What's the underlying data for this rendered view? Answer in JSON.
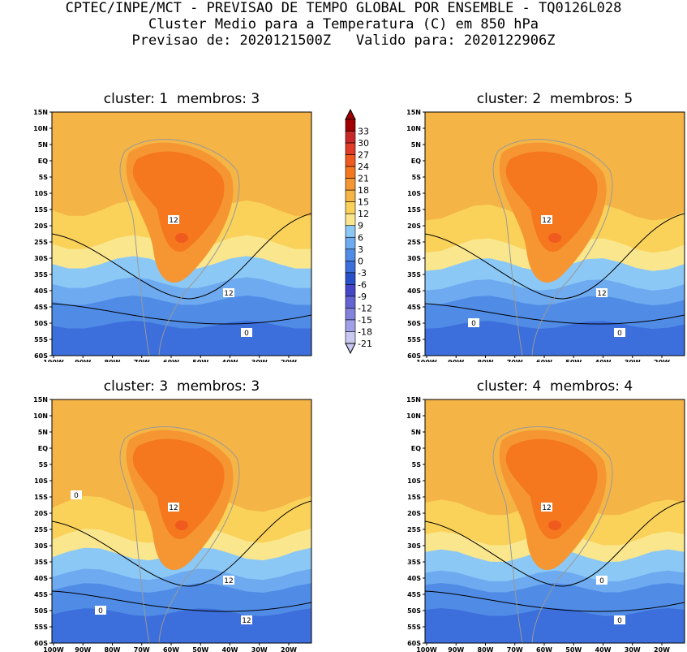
{
  "header": {
    "line1": "CPTEC/INPE/MCT - PREVISAO DE TEMPO GLOBAL POR ENSEMBLE - TQ0126L028",
    "line2": "Cluster Medio para a Temperatura (C) em 850 hPa",
    "line3": "Previsao de: 2020121500Z   Valido para: 2020122906Z"
  },
  "panels": [
    {
      "title": "cluster: 1  membros: 3",
      "contour_labels": [
        "12",
        "12",
        "0"
      ]
    },
    {
      "title": "cluster: 2  membros: 5",
      "contour_labels": [
        "12",
        "12",
        "0",
        "0"
      ]
    },
    {
      "title": "cluster: 3  membros: 3",
      "contour_labels": [
        "12",
        "12",
        "12",
        "0",
        "0"
      ]
    },
    {
      "title": "cluster: 4  membros: 4",
      "contour_labels": [
        "12",
        "0",
        "0"
      ]
    }
  ],
  "y_ticks": [
    "15N",
    "10N",
    "5N",
    "EQ",
    "5S",
    "10S",
    "15S",
    "20S",
    "25S",
    "30S",
    "35S",
    "40S",
    "45S",
    "50S",
    "55S",
    "60S"
  ],
  "x_ticks": [
    "100W",
    "90W",
    "80W",
    "70W",
    "60W",
    "50W",
    "40W",
    "30W",
    "20W"
  ],
  "colorbar": {
    "labels": [
      "33",
      "30",
      "27",
      "24",
      "21",
      "18",
      "15",
      "12",
      "9",
      "6",
      "3",
      "0",
      "-3",
      "-6",
      "-9",
      "-12",
      "-15",
      "-18",
      "-21"
    ],
    "colors": [
      "#a00000",
      "#c82828",
      "#e03c28",
      "#f05a1e",
      "#f5781e",
      "#f59632",
      "#f5b446",
      "#fad25a",
      "#fae68c",
      "#8cc8f5",
      "#6eaaf0",
      "#508ce6",
      "#3c6edc",
      "#2850c8",
      "#4646c8",
      "#6464d2",
      "#8282dc",
      "#a0a0e6",
      "#c8c8f0"
    ]
  }
}
